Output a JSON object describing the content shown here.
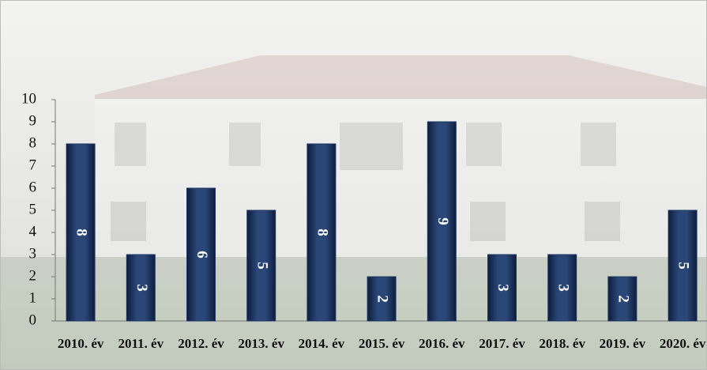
{
  "chart_data": {
    "type": "bar",
    "categories": [
      "2010. év",
      "2011. év",
      "2012. év",
      "2013. év",
      "2014. év",
      "2015. év",
      "2016. év",
      "2017. év",
      "2018. év",
      "2019. év",
      "2020. év"
    ],
    "values": [
      8,
      3,
      6,
      5,
      8,
      2,
      9,
      3,
      3,
      2,
      5
    ],
    "color": "#1f3864",
    "ylim": [
      0,
      10
    ],
    "yticks": [
      0,
      1,
      2,
      3,
      4,
      5,
      6,
      7,
      8,
      9,
      10
    ],
    "grid": false
  }
}
